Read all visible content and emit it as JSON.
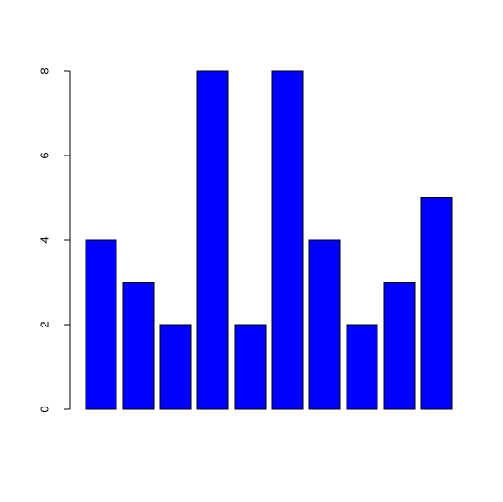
{
  "chart_data": {
    "type": "bar",
    "categories": [
      null,
      null,
      null,
      null,
      null,
      null,
      null,
      null,
      null,
      null
    ],
    "values": [
      4,
      3,
      2,
      8,
      2,
      8,
      4,
      2,
      3,
      5
    ],
    "color": "#0000ff",
    "ylim": [
      0,
      8
    ],
    "yticks": [
      0,
      2,
      4,
      6,
      8
    ],
    "grid": false
  }
}
